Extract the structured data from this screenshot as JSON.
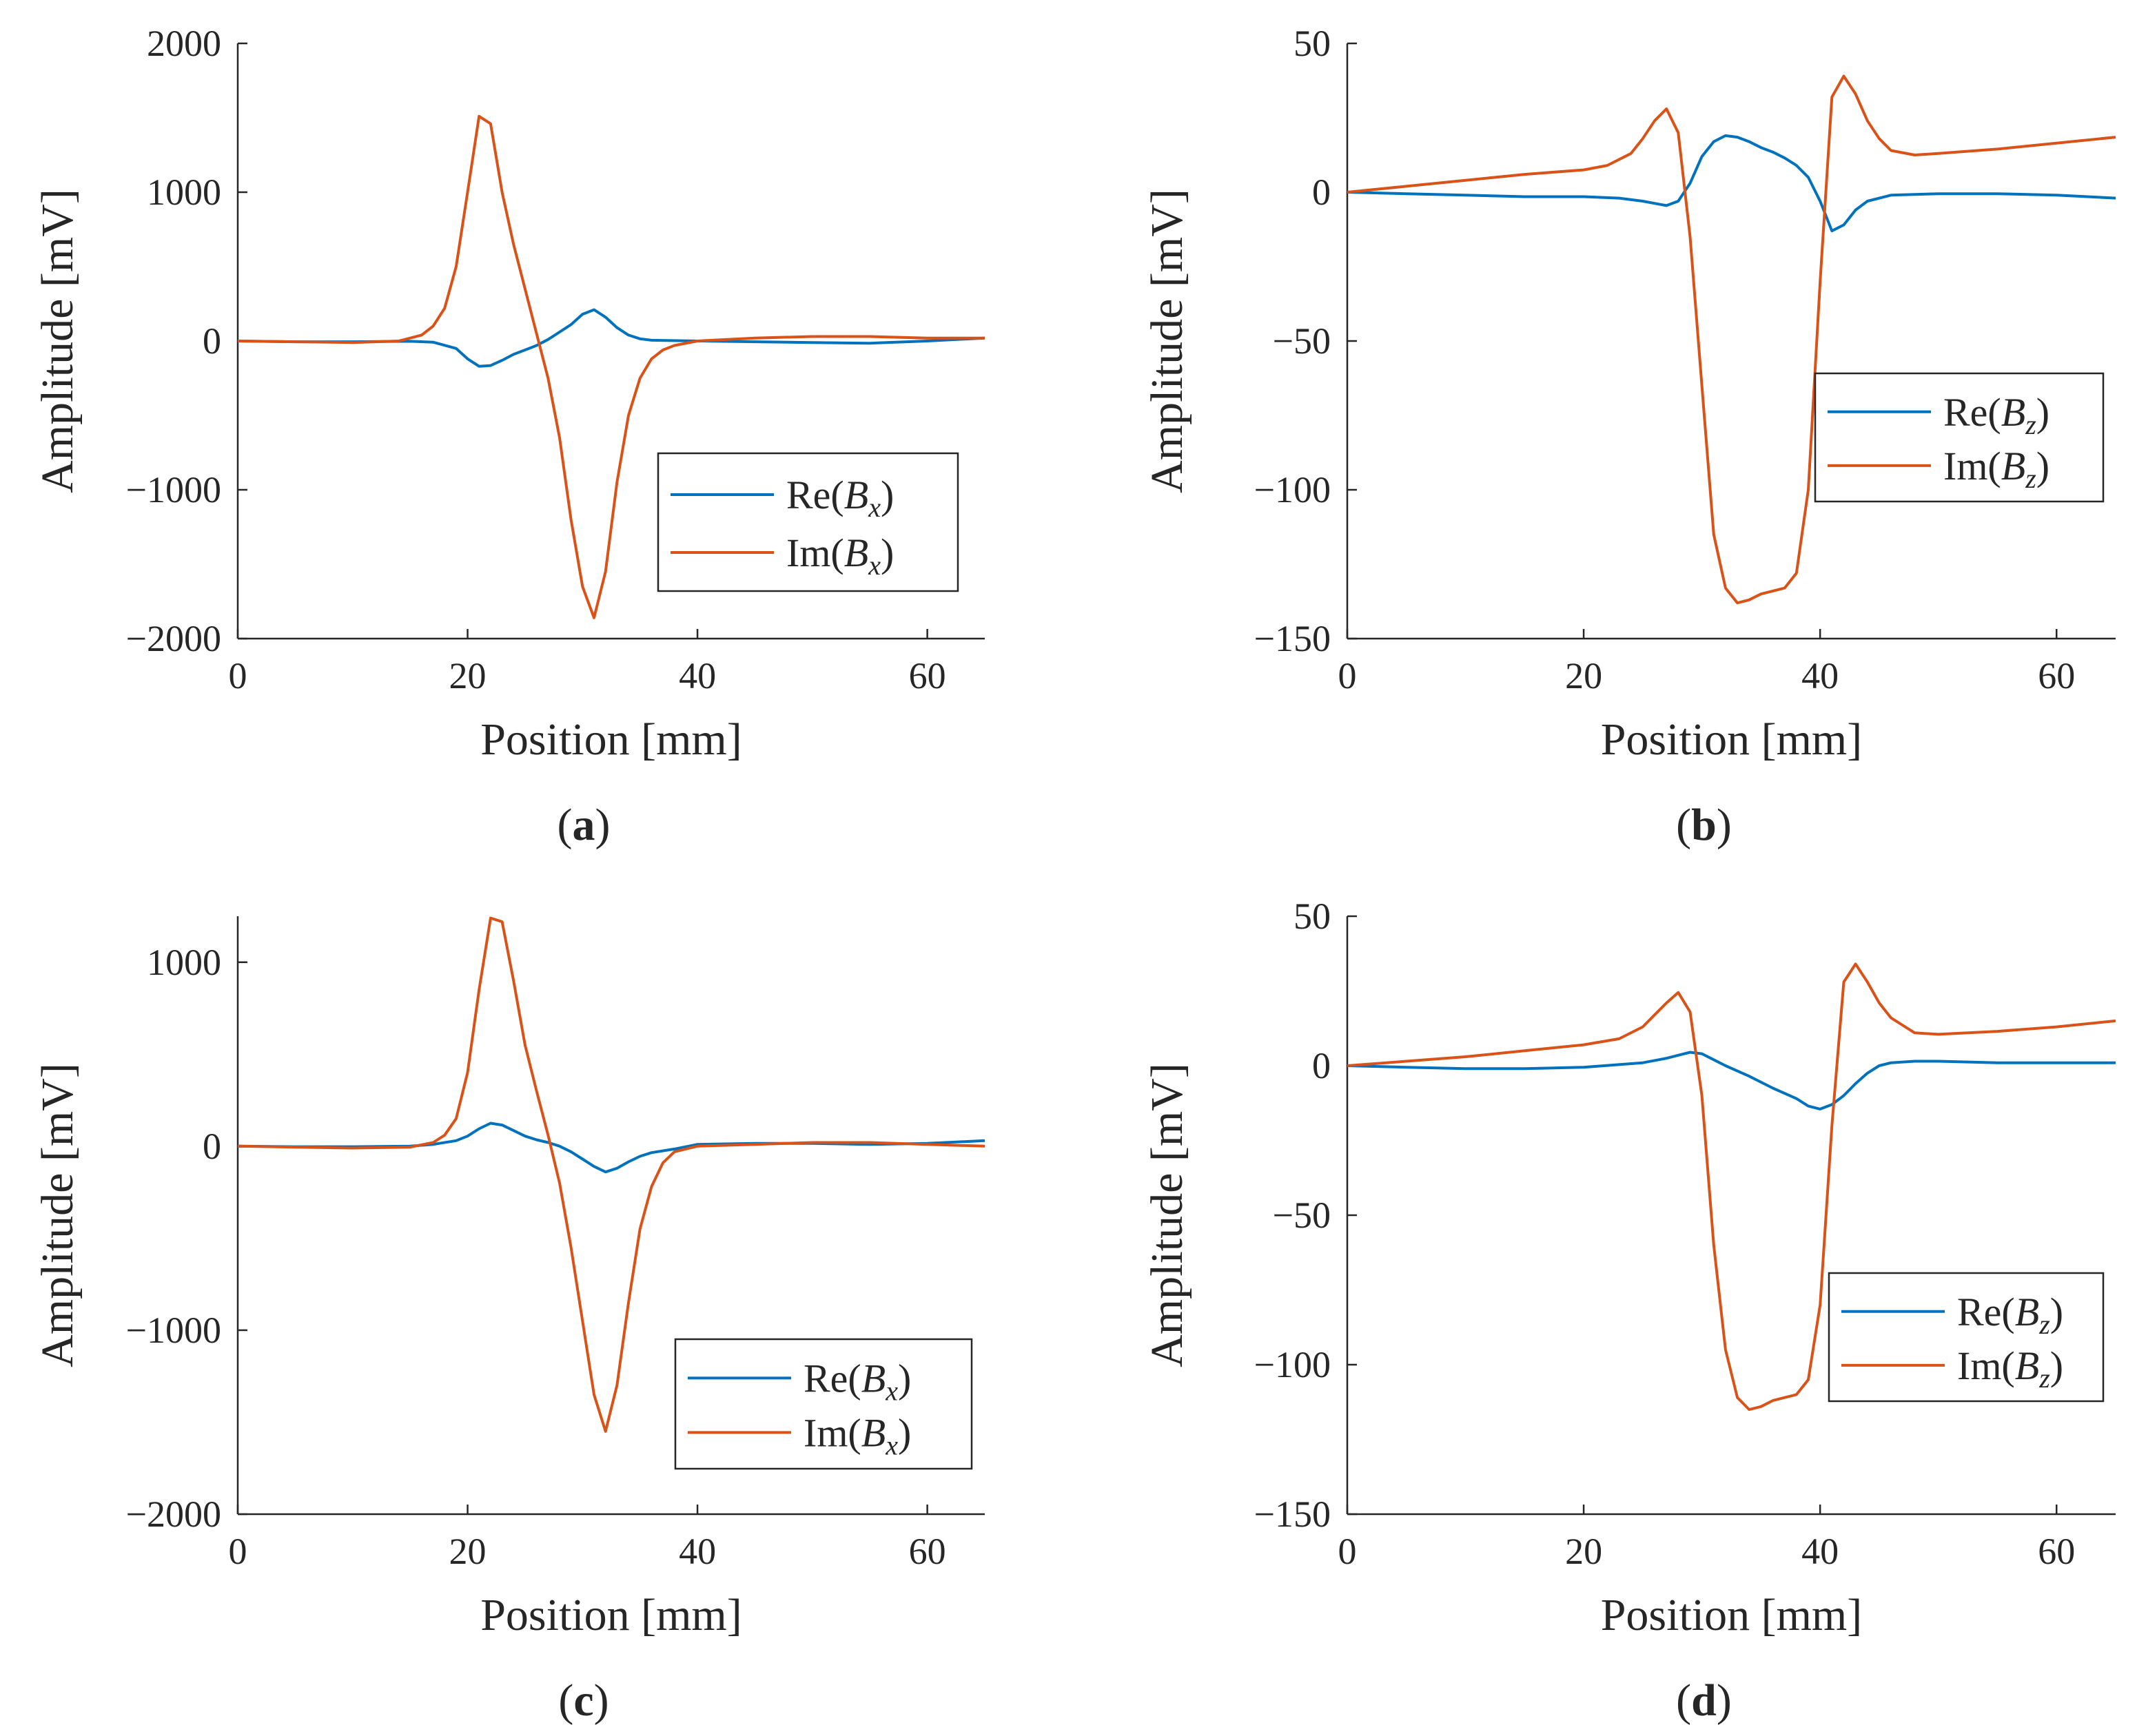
{
  "chart_data": [
    {
      "type": "line",
      "panel": "a",
      "caption_letter": "a",
      "xlabel": "Position [mm]",
      "ylabel": "Amplitude [mV]",
      "xlim": [
        0,
        65
      ],
      "ylim": [
        -2000,
        2000
      ],
      "xticks": [
        0,
        20,
        40,
        60
      ],
      "yticks": [
        -2000,
        -1000,
        0,
        1000,
        2000
      ],
      "ytick_labels": [
        "−2000",
        "−1000",
        "0",
        "1000",
        "2000"
      ],
      "legend_position": "lower-right",
      "series": [
        {
          "name": "Re(Bx)",
          "legend_fn": "Re(",
          "legend_var": "B",
          "legend_sub": "x",
          "legend_close": ")",
          "color": "#0072BD",
          "x": [
            0,
            5,
            10,
            15,
            17,
            19,
            20,
            21,
            22,
            23,
            24,
            25,
            26,
            27,
            28,
            29,
            30,
            31,
            32,
            33,
            34,
            35,
            36,
            40,
            45,
            50,
            55,
            60,
            65
          ],
          "y": [
            0,
            -5,
            -5,
            -2,
            -8,
            -50,
            -120,
            -170,
            -165,
            -130,
            -90,
            -60,
            -30,
            10,
            60,
            110,
            180,
            210,
            160,
            90,
            40,
            15,
            5,
            0,
            -5,
            -10,
            -15,
            0,
            20
          ]
        },
        {
          "name": "Im(Bx)",
          "legend_fn": "Im(",
          "legend_var": "B",
          "legend_sub": "x",
          "legend_close": ")",
          "color": "#D95319",
          "x": [
            0,
            5,
            10,
            14,
            16,
            17,
            18,
            19,
            20,
            21,
            22,
            23,
            24,
            25,
            26,
            27,
            28,
            29,
            30,
            31,
            32,
            33,
            34,
            35,
            36,
            37,
            38,
            40,
            45,
            50,
            55,
            60,
            65
          ],
          "y": [
            0,
            -5,
            -10,
            0,
            40,
            100,
            220,
            500,
            1000,
            1510,
            1460,
            1000,
            650,
            350,
            50,
            -250,
            -650,
            -1200,
            -1650,
            -1860,
            -1550,
            -950,
            -500,
            -250,
            -120,
            -60,
            -30,
            0,
            20,
            30,
            30,
            20,
            20
          ]
        }
      ]
    },
    {
      "type": "line",
      "panel": "b",
      "caption_letter": "b",
      "xlabel": "Position [mm]",
      "ylabel": "Amplitude [mV]",
      "xlim": [
        0,
        65
      ],
      "ylim": [
        -150,
        50
      ],
      "xticks": [
        0,
        20,
        40,
        60
      ],
      "yticks": [
        -150,
        -100,
        -50,
        0,
        50
      ],
      "ytick_labels": [
        "−150",
        "−100",
        "−50",
        "0",
        "50"
      ],
      "legend_position": "center-right",
      "series": [
        {
          "name": "Re(Bz)",
          "legend_fn": "Re(",
          "legend_var": "B",
          "legend_sub": "z",
          "legend_close": ")",
          "color": "#0072BD",
          "x": [
            0,
            5,
            10,
            15,
            20,
            23,
            25,
            27,
            28,
            29,
            30,
            31,
            32,
            33,
            34,
            35,
            36,
            37,
            38,
            39,
            40,
            41,
            42,
            43,
            44,
            46,
            50,
            55,
            60,
            65
          ],
          "y": [
            0,
            -0.5,
            -1,
            -1.5,
            -1.5,
            -2,
            -3,
            -4.5,
            -3,
            3,
            12,
            17,
            19,
            18.5,
            17,
            15,
            13.5,
            11.5,
            9,
            5,
            -3,
            -13,
            -11,
            -6,
            -3,
            -1,
            -0.5,
            -0.5,
            -1,
            -2
          ]
        },
        {
          "name": "Im(Bz)",
          "legend_fn": "Im(",
          "legend_var": "B",
          "legend_sub": "z",
          "legend_close": ")",
          "color": "#D95319",
          "x": [
            0,
            5,
            10,
            15,
            20,
            22,
            24,
            25,
            26,
            27,
            28,
            29,
            30,
            31,
            32,
            33,
            34,
            35,
            36,
            37,
            38,
            39,
            40,
            41,
            42,
            43,
            44,
            45,
            46,
            48,
            50,
            55,
            60,
            65
          ],
          "y": [
            0,
            2,
            4,
            6,
            7.5,
            9,
            13,
            18,
            24,
            28,
            20,
            -15,
            -65,
            -115,
            -133,
            -138,
            -137,
            -135,
            -134,
            -133,
            -128,
            -100,
            -30,
            32,
            39,
            33,
            24,
            18,
            14,
            12.5,
            13,
            14.5,
            16.5,
            18.5
          ]
        }
      ]
    },
    {
      "type": "line",
      "panel": "c",
      "caption_letter": "c",
      "xlabel": "Position [mm]",
      "ylabel": "Amplitude [mV]",
      "xlim": [
        0,
        65
      ],
      "ylim": [
        -2000,
        1250
      ],
      "xticks": [
        0,
        20,
        40,
        60
      ],
      "yticks": [
        -2000,
        -1000,
        0,
        1000
      ],
      "ytick_labels": [
        "−2000",
        "−1000",
        "0",
        "1000"
      ],
      "legend_position": "lower-right",
      "series": [
        {
          "name": "Re(Bx)",
          "legend_fn": "Re(",
          "legend_var": "B",
          "legend_sub": "x",
          "legend_close": ")",
          "color": "#0072BD",
          "x": [
            0,
            5,
            10,
            15,
            17,
            19,
            20,
            21,
            22,
            23,
            24,
            25,
            26,
            27,
            28,
            29,
            30,
            31,
            32,
            33,
            34,
            35,
            36,
            38,
            40,
            45,
            50,
            55,
            60,
            65
          ],
          "y": [
            0,
            -3,
            -3,
            0,
            10,
            30,
            55,
            95,
            125,
            115,
            85,
            55,
            35,
            20,
            0,
            -30,
            -70,
            -110,
            -140,
            -120,
            -85,
            -55,
            -35,
            -15,
            10,
            15,
            15,
            10,
            15,
            30
          ]
        },
        {
          "name": "Im(Bx)",
          "legend_fn": "Im(",
          "legend_var": "B",
          "legend_sub": "x",
          "legend_close": ")",
          "color": "#D95319",
          "x": [
            0,
            5,
            10,
            15,
            17,
            18,
            19,
            20,
            21,
            22,
            23,
            24,
            25,
            26,
            27,
            28,
            29,
            30,
            31,
            32,
            33,
            34,
            35,
            36,
            37,
            38,
            40,
            45,
            50,
            55,
            60,
            65
          ],
          "y": [
            0,
            -5,
            -10,
            -5,
            20,
            60,
            150,
            400,
            850,
            1240,
            1220,
            900,
            550,
            300,
            60,
            -200,
            -550,
            -950,
            -1350,
            -1550,
            -1300,
            -850,
            -450,
            -220,
            -90,
            -30,
            0,
            10,
            20,
            20,
            10,
            0
          ]
        }
      ]
    },
    {
      "type": "line",
      "panel": "d",
      "caption_letter": "d",
      "xlabel": "Position [mm]",
      "ylabel": "Amplitude [mV]",
      "xlim": [
        0,
        65
      ],
      "ylim": [
        -150,
        50
      ],
      "xticks": [
        0,
        20,
        40,
        60
      ],
      "yticks": [
        -150,
        -100,
        -50,
        0,
        50
      ],
      "ytick_labels": [
        "−150",
        "−100",
        "−50",
        "0",
        "50"
      ],
      "legend_position": "lower-right",
      "series": [
        {
          "name": "Re(Bz)",
          "legend_fn": "Re(",
          "legend_var": "B",
          "legend_sub": "z",
          "legend_close": ")",
          "color": "#0072BD",
          "x": [
            0,
            5,
            10,
            15,
            20,
            25,
            27,
            28,
            29,
            30,
            31,
            32,
            34,
            36,
            38,
            39,
            40,
            41,
            42,
            43,
            44,
            45,
            46,
            48,
            50,
            55,
            60,
            65
          ],
          "y": [
            0,
            -0.5,
            -1,
            -1,
            -0.5,
            1,
            2.5,
            3.5,
            4.5,
            4,
            2,
            0,
            -3.5,
            -7.5,
            -11,
            -13.5,
            -14.5,
            -13,
            -10,
            -6,
            -2.5,
            0,
            1,
            1.5,
            1.5,
            1,
            1,
            1
          ]
        },
        {
          "name": "Im(Bz)",
          "legend_fn": "Im(",
          "legend_var": "B",
          "legend_sub": "z",
          "legend_close": ")",
          "color": "#D95319",
          "x": [
            0,
            5,
            10,
            15,
            20,
            23,
            25,
            26,
            27,
            28,
            29,
            30,
            31,
            32,
            33,
            34,
            35,
            36,
            37,
            38,
            39,
            40,
            41,
            42,
            43,
            44,
            45,
            46,
            48,
            50,
            55,
            60,
            65
          ],
          "y": [
            0,
            1.5,
            3,
            5,
            7,
            9,
            13,
            17,
            21,
            24.5,
            18,
            -10,
            -60,
            -95,
            -111,
            -115,
            -114,
            -112,
            -111,
            -110,
            -105,
            -80,
            -20,
            28,
            34,
            28,
            21,
            16,
            11,
            10.5,
            11.5,
            13,
            15
          ]
        }
      ]
    }
  ]
}
